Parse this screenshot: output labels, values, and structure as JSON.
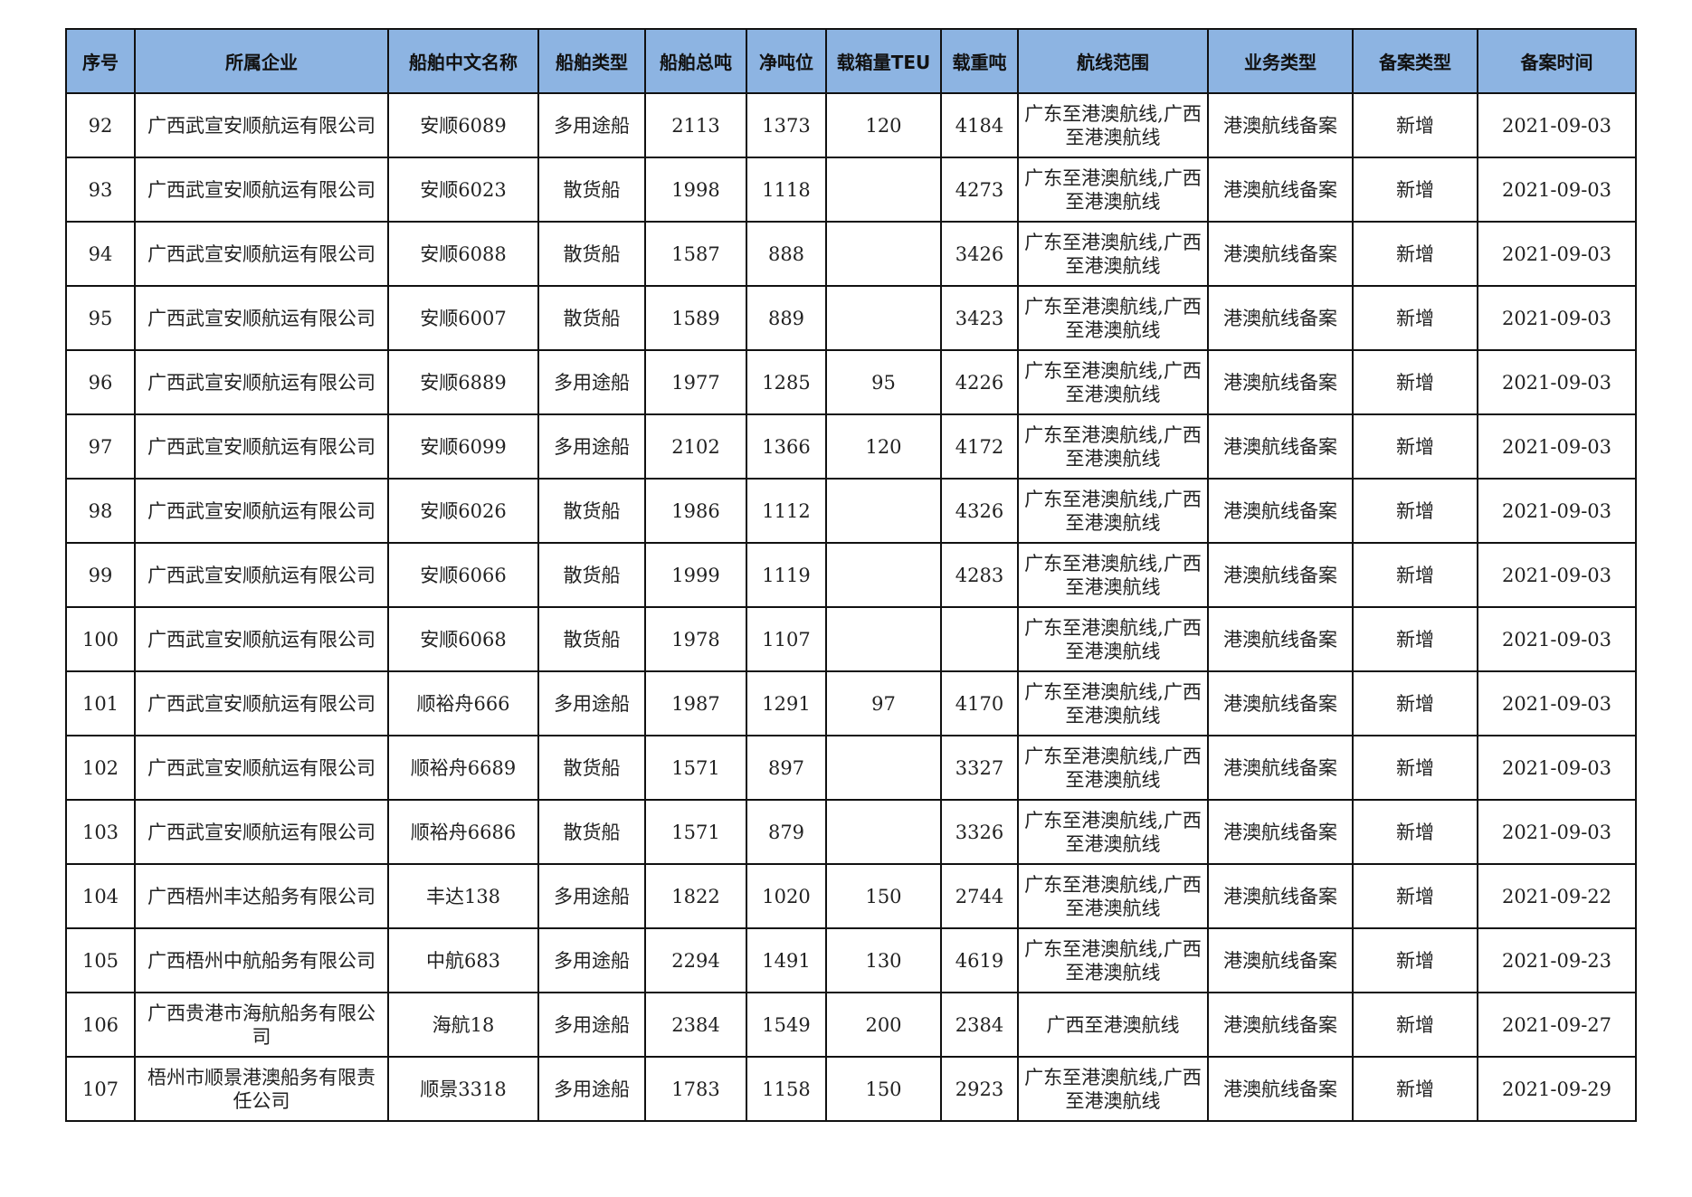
{
  "headers": [
    "序号",
    "所属企业",
    "船舶中文名称",
    "船舶类型",
    "船舶总吨",
    "净吨位",
    "载箱量TEU",
    "载重吨",
    "航线范围",
    "业务类型",
    "备案类型",
    "备案时间"
  ],
  "rows": [
    [
      "92",
      "广西武宣安顺航运有限公司",
      "安顺6089",
      "多用途船",
      "2113",
      "1373",
      "120",
      "4184",
      "广东至港澳航线,广西至港澳航线",
      "港澳航线备案",
      "新增",
      "2021-09-03"
    ],
    [
      "93",
      "广西武宣安顺航运有限公司",
      "安顺6023",
      "散货船",
      "1998",
      "1118",
      "",
      "4273",
      "广东至港澳航线,广西至港澳航线",
      "港澳航线备案",
      "新增",
      "2021-09-03"
    ],
    [
      "94",
      "广西武宣安顺航运有限公司",
      "安顺6088",
      "散货船",
      "1587",
      "888",
      "",
      "3426",
      "广东至港澳航线,广西至港澳航线",
      "港澳航线备案",
      "新增",
      "2021-09-03"
    ],
    [
      "95",
      "广西武宣安顺航运有限公司",
      "安顺6007",
      "散货船",
      "1589",
      "889",
      "",
      "3423",
      "广东至港澳航线,广西至港澳航线",
      "港澳航线备案",
      "新增",
      "2021-09-03"
    ],
    [
      "96",
      "广西武宣安顺航运有限公司",
      "安顺6889",
      "多用途船",
      "1977",
      "1285",
      "95",
      "4226",
      "广东至港澳航线,广西至港澳航线",
      "港澳航线备案",
      "新增",
      "2021-09-03"
    ],
    [
      "97",
      "广西武宣安顺航运有限公司",
      "安顺6099",
      "多用途船",
      "2102",
      "1366",
      "120",
      "4172",
      "广东至港澳航线,广西至港澳航线",
      "港澳航线备案",
      "新增",
      "2021-09-03"
    ],
    [
      "98",
      "广西武宣安顺航运有限公司",
      "安顺6026",
      "散货船",
      "1986",
      "1112",
      "",
      "4326",
      "广东至港澳航线,广西至港澳航线",
      "港澳航线备案",
      "新增",
      "2021-09-03"
    ],
    [
      "99",
      "广西武宣安顺航运有限公司",
      "安顺6066",
      "散货船",
      "1999",
      "1119",
      "",
      "4283",
      "广东至港澳航线,广西至港澳航线",
      "港澳航线备案",
      "新增",
      "2021-09-03"
    ],
    [
      "100",
      "广西武宣安顺航运有限公司",
      "安顺6068",
      "散货船",
      "1978",
      "1107",
      "",
      "",
      "广东至港澳航线,广西至港澳航线",
      "港澳航线备案",
      "新增",
      "2021-09-03"
    ],
    [
      "101",
      "广西武宣安顺航运有限公司",
      "顺裕舟666",
      "多用途船",
      "1987",
      "1291",
      "97",
      "4170",
      "广东至港澳航线,广西至港澳航线",
      "港澳航线备案",
      "新增",
      "2021-09-03"
    ],
    [
      "102",
      "广西武宣安顺航运有限公司",
      "顺裕舟6689",
      "散货船",
      "1571",
      "897",
      "",
      "3327",
      "广东至港澳航线,广西至港澳航线",
      "港澳航线备案",
      "新增",
      "2021-09-03"
    ],
    [
      "103",
      "广西武宣安顺航运有限公司",
      "顺裕舟6686",
      "散货船",
      "1571",
      "879",
      "",
      "3326",
      "广东至港澳航线,广西至港澳航线",
      "港澳航线备案",
      "新增",
      "2021-09-03"
    ],
    [
      "104",
      "广西梧州丰达船务有限公司",
      "丰达138",
      "多用途船",
      "1822",
      "1020",
      "150",
      "2744",
      "广东至港澳航线,广西至港澳航线",
      "港澳航线备案",
      "新增",
      "2021-09-22"
    ],
    [
      "105",
      "广西梧州中航船务有限公司",
      "中航683",
      "多用途船",
      "2294",
      "1491",
      "130",
      "4619",
      "广东至港澳航线,广西至港澳航线",
      "港澳航线备案",
      "新增",
      "2021-09-23"
    ],
    [
      "106",
      "广西贵港市海航船务有限公司",
      "海航18",
      "多用途船",
      "2384",
      "1549",
      "200",
      "2384",
      "广西至港澳航线",
      "港澳航线备案",
      "新增",
      "2021-09-27"
    ],
    [
      "107",
      "梧州市顺景港澳船务有限责任公司",
      "顺景3318",
      "多用途船",
      "1783",
      "1158",
      "150",
      "2923",
      "广东至港澳航线,广西至港澳航线",
      "港澳航线备案",
      "新增",
      "2021-09-29"
    ]
  ],
  "colors": {
    "header_bg": "#8db4e2",
    "border": "#111111"
  }
}
